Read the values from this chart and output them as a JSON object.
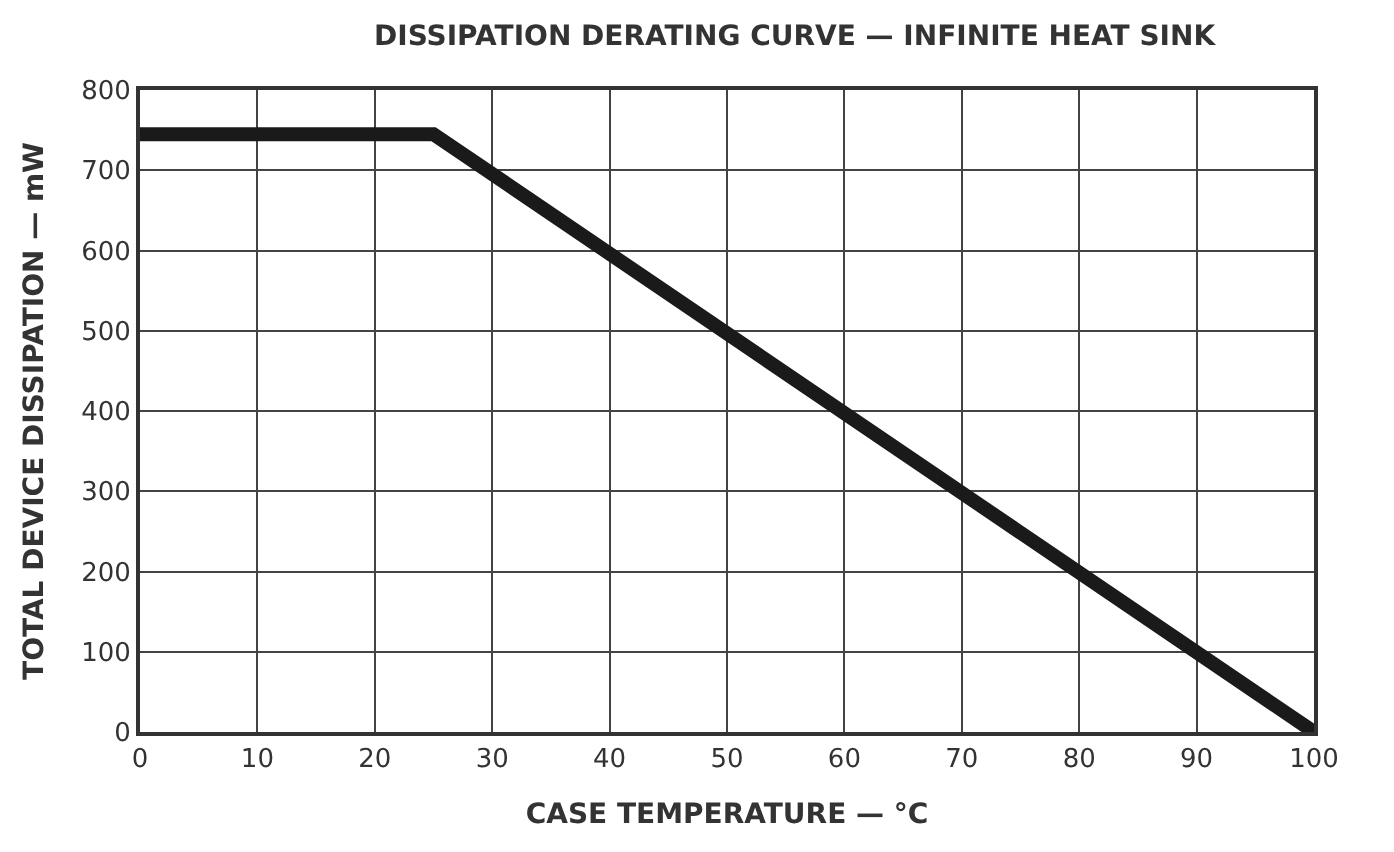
{
  "chart_data": {
    "type": "line",
    "title": "DISSIPATION DERATING CURVE — INFINITE HEAT SINK",
    "xlabel": "CASE TEMPERATURE — °C",
    "ylabel": "TOTAL DEVICE DISSIPATION — mW",
    "x": [
      0,
      25,
      100
    ],
    "series": [
      {
        "color": "#1a1a1a",
        "values": [
          745,
          745,
          0
        ]
      }
    ],
    "xlim": [
      0,
      100
    ],
    "xticks": [
      0,
      10,
      20,
      30,
      40,
      50,
      60,
      70,
      80,
      90,
      100
    ],
    "ylim": [
      0,
      800
    ],
    "yticks": [
      0,
      100,
      200,
      300,
      400,
      500,
      600,
      700,
      800
    ],
    "grid": true,
    "line_style": "solid"
  }
}
